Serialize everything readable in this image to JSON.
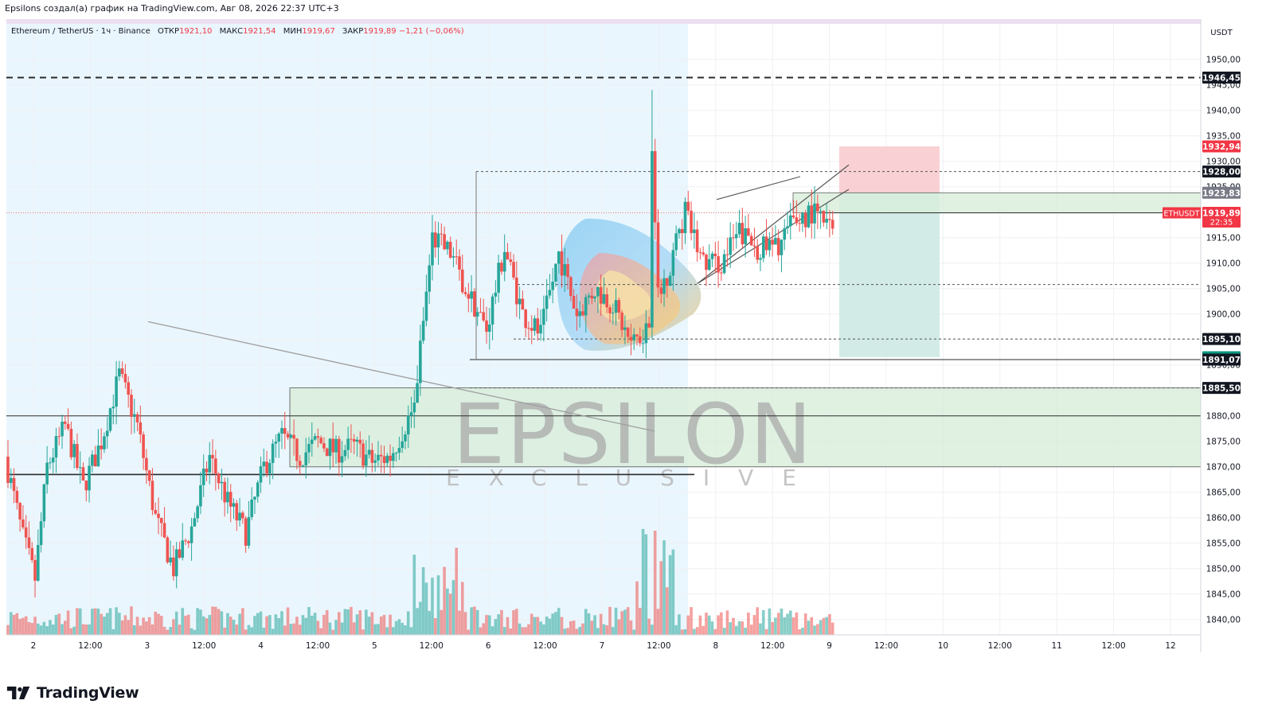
{
  "header": {
    "caption": "Epsilons создал(а) график на TradingView.com, Авг 08, 2026 22:37 UTC+3"
  },
  "legend": {
    "symbol": "Ethereum / TetherUS · 1ч · Binance",
    "open_label": "ОТКР",
    "open_value": "1921,10",
    "high_label": "МАКС",
    "high_value": "1921,54",
    "low_label": "МИН",
    "low_value": "1919,67",
    "close_label": "ЗАКР",
    "close_value": "1919,89",
    "change": "−1,21 (−0,06%)"
  },
  "footer": {
    "brand": "TradingView",
    "logo_icon": "tradingview-logo-icon"
  },
  "watermark": {
    "main": "EPSILON",
    "sub": "EXCLUSIVE"
  },
  "colors": {
    "up": "#26a69a",
    "down": "#ef5350",
    "stop_zone": "#f8c9cc",
    "target_zone": "#cde9e3",
    "demand_zone": "#d9eedb",
    "session_bg": "#eaf6fd"
  },
  "chart_data": {
    "type": "candlestick",
    "symbol": "ETHUSDT",
    "timeframe": "1h",
    "currency": "USDT",
    "ylim": [
      1837,
      1957
    ],
    "x_ticks": [
      "2",
      "12:00",
      "3",
      "12:00",
      "4",
      "12:00",
      "5",
      "12:00",
      "6",
      "12:00",
      "7",
      "12:00",
      "8",
      "12:00",
      "9",
      "12:00",
      "10",
      "12:00",
      "11",
      "12:00",
      "12"
    ],
    "y_ticks": [
      "1950,00",
      "1945,00",
      "1940,00",
      "1935,00",
      "1930,00",
      "1925,00",
      "1920,00",
      "1915,00",
      "1910,00",
      "1905,00",
      "1900,00",
      "1895,00",
      "1890,00",
      "1885,00",
      "1880,00",
      "1875,00",
      "1870,00",
      "1865,00",
      "1860,00",
      "1855,00",
      "1850,00",
      "1845,00",
      "1840,00"
    ],
    "price_labels": [
      {
        "text": "1946,45",
        "value": 1946.45,
        "style": "black"
      },
      {
        "text": "1932,94",
        "value": 1932.94,
        "style": "red"
      },
      {
        "text": "1928,00",
        "value": 1928.0,
        "style": "black"
      },
      {
        "text": "1923,83",
        "value": 1923.83,
        "style": "gray"
      },
      {
        "text": "1919,89",
        "value": 1919.89,
        "style": "red",
        "tag": "ETHUSDT",
        "time": "22:35"
      },
      {
        "text": "1895,10",
        "value": 1895.1,
        "style": "black"
      },
      {
        "text": "1891,54",
        "value": 1891.54,
        "style": "green"
      },
      {
        "text": "1891,07",
        "value": 1891.07,
        "style": "black"
      },
      {
        "text": "1885,50",
        "value": 1885.5,
        "style": "black"
      }
    ],
    "horizontal_levels": [
      {
        "value": 1946.45,
        "style": "dashed-bold"
      },
      {
        "value": 1928.0,
        "style": "dotted"
      },
      {
        "value": 1905.8,
        "style": "dotted"
      },
      {
        "value": 1895.1,
        "style": "dotted"
      },
      {
        "value": 1891.07,
        "style": "solid"
      },
      {
        "value": 1885.5,
        "style": "dotted"
      },
      {
        "value": 1880.0,
        "style": "solid"
      },
      {
        "value": 1868.5,
        "style": "solid-bold"
      }
    ],
    "position": {
      "entry": 1923.83,
      "stop": 1932.94,
      "target": 1891.54,
      "side": "short"
    },
    "demand_zone": [
      1870.0,
      1885.5
    ],
    "last_price": 1919.89,
    "grid": true
  }
}
